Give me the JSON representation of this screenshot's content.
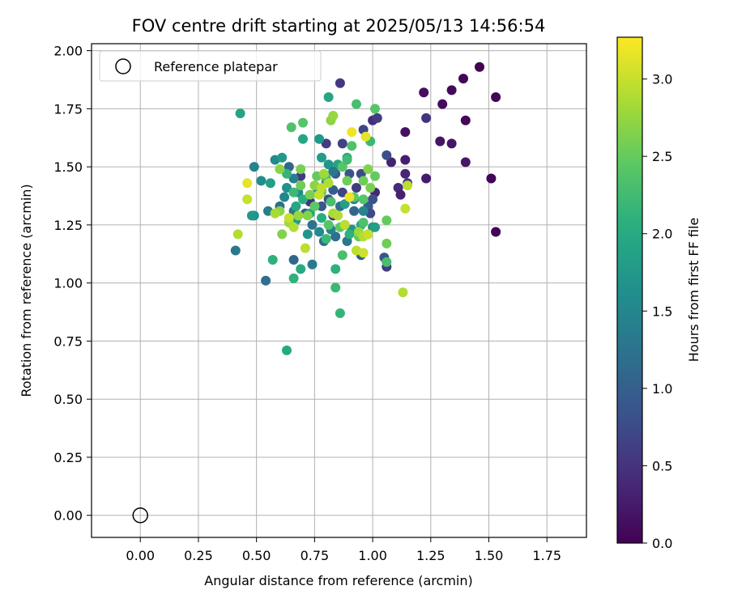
{
  "chart_data": {
    "type": "scatter",
    "title": "FOV centre drift starting at 2025/05/13 14:56:54",
    "xlabel": "Angular distance from reference (arcmin)",
    "ylabel": "Rotation from reference (arcmin)",
    "xlim": [
      -0.21,
      1.92
    ],
    "ylim": [
      -0.095,
      2.03
    ],
    "xticks": [
      "0.00",
      "0.25",
      "0.50",
      "0.75",
      "1.00",
      "1.25",
      "1.50",
      "1.75"
    ],
    "xtick_values": [
      0,
      0.25,
      0.5,
      0.75,
      1.0,
      1.25,
      1.5,
      1.75
    ],
    "yticks": [
      "0.00",
      "0.25",
      "0.50",
      "0.75",
      "1.00",
      "1.25",
      "1.50",
      "1.75",
      "2.00"
    ],
    "ytick_values": [
      0,
      0.25,
      0.5,
      0.75,
      1.0,
      1.25,
      1.5,
      1.75,
      2.0
    ],
    "grid": true,
    "legend": {
      "position": "upper-left",
      "entries": [
        {
          "label": "Reference platepar",
          "marker": "open-circle"
        }
      ]
    },
    "reference_point": {
      "x": 0.0,
      "y": 0.0
    },
    "colorbar": {
      "label": "Hours from first FF file",
      "range": [
        0.0,
        3.27
      ],
      "ticks": [
        "0.0",
        "0.5",
        "1.0",
        "1.5",
        "2.0",
        "2.5",
        "3.0"
      ],
      "tick_values": [
        0,
        0.5,
        1.0,
        1.5,
        2.0,
        2.5,
        3.0
      ],
      "colormap": "viridis"
    },
    "points": [
      [
        1.46,
        1.93,
        0.0
      ],
      [
        1.39,
        1.88,
        0.05
      ],
      [
        1.34,
        1.83,
        0.08
      ],
      [
        1.3,
        1.77,
        0.1
      ],
      [
        1.22,
        1.82,
        0.12
      ],
      [
        1.53,
        1.8,
        0.02
      ],
      [
        1.4,
        1.7,
        0.06
      ],
      [
        1.14,
        1.65,
        0.15
      ],
      [
        1.29,
        1.61,
        0.18
      ],
      [
        1.34,
        1.6,
        0.2
      ],
      [
        1.4,
        1.52,
        0.22
      ],
      [
        1.51,
        1.45,
        0.04
      ],
      [
        1.53,
        1.22,
        0.03
      ],
      [
        1.23,
        1.45,
        0.25
      ],
      [
        1.14,
        1.53,
        0.28
      ],
      [
        1.08,
        1.52,
        0.32
      ],
      [
        1.14,
        1.47,
        0.35
      ],
      [
        1.11,
        1.41,
        0.4
      ],
      [
        1.12,
        1.38,
        0.3
      ],
      [
        1.15,
        1.43,
        0.45
      ],
      [
        1.23,
        1.71,
        0.5
      ],
      [
        1.0,
        1.7,
        0.42
      ],
      [
        1.02,
        1.71,
        0.6
      ],
      [
        0.86,
        1.86,
        0.55
      ],
      [
        0.96,
        1.66,
        0.7
      ],
      [
        1.06,
        1.55,
        0.8
      ],
      [
        1.01,
        1.39,
        0.38
      ],
      [
        1.06,
        1.07,
        0.6
      ],
      [
        1.05,
        1.11,
        0.9
      ],
      [
        0.95,
        1.12,
        1.0
      ],
      [
        0.87,
        1.6,
        0.65
      ],
      [
        0.8,
        1.6,
        0.58
      ],
      [
        0.95,
        1.47,
        0.75
      ],
      [
        0.9,
        1.47,
        0.85
      ],
      [
        0.84,
        1.47,
        0.95
      ],
      [
        0.8,
        1.44,
        1.05
      ],
      [
        0.93,
        1.41,
        0.6
      ],
      [
        0.87,
        1.39,
        0.7
      ],
      [
        0.81,
        1.36,
        0.8
      ],
      [
        0.78,
        1.33,
        0.9
      ],
      [
        0.98,
        1.33,
        1.0
      ],
      [
        0.92,
        1.31,
        1.1
      ],
      [
        0.83,
        1.29,
        0.5
      ],
      [
        0.88,
        1.25,
        0.65
      ],
      [
        0.99,
        1.3,
        0.75
      ],
      [
        1.0,
        1.36,
        0.85
      ],
      [
        0.84,
        1.2,
        1.2
      ],
      [
        0.89,
        1.18,
        1.3
      ],
      [
        0.79,
        1.18,
        1.15
      ],
      [
        0.74,
        1.25,
        1.25
      ],
      [
        0.73,
        1.35,
        0.45
      ],
      [
        0.69,
        1.46,
        0.55
      ],
      [
        0.71,
        1.3,
        0.95
      ],
      [
        0.64,
        1.5,
        1.1
      ],
      [
        0.66,
        1.31,
        1.3
      ],
      [
        0.6,
        1.33,
        1.2
      ],
      [
        0.55,
        1.31,
        1.4
      ],
      [
        0.41,
        1.14,
        1.3
      ],
      [
        0.54,
        1.01,
        1.2
      ],
      [
        0.66,
        1.1,
        1.1
      ],
      [
        0.74,
        1.08,
        1.35
      ],
      [
        0.62,
        1.37,
        1.5
      ],
      [
        0.49,
        1.5,
        1.45
      ],
      [
        0.52,
        1.44,
        1.6
      ],
      [
        0.58,
        1.53,
        1.55
      ],
      [
        0.61,
        1.54,
        1.75
      ],
      [
        0.66,
        1.45,
        1.4
      ],
      [
        0.68,
        1.39,
        1.5
      ],
      [
        0.76,
        1.41,
        1.6
      ],
      [
        0.78,
        1.4,
        1.3
      ],
      [
        0.83,
        1.4,
        1.0
      ],
      [
        0.86,
        1.33,
        1.2
      ],
      [
        0.92,
        1.36,
        1.4
      ],
      [
        0.96,
        1.31,
        1.5
      ],
      [
        1.0,
        1.24,
        1.6
      ],
      [
        0.91,
        1.23,
        1.7
      ],
      [
        0.82,
        1.23,
        1.45
      ],
      [
        0.77,
        1.22,
        1.55
      ],
      [
        0.72,
        1.21,
        1.7
      ],
      [
        0.67,
        1.27,
        1.8
      ],
      [
        0.63,
        1.41,
        1.65
      ],
      [
        0.56,
        1.43,
        1.85
      ],
      [
        0.49,
        1.29,
        1.65
      ],
      [
        0.48,
        1.29,
        1.75
      ],
      [
        0.81,
        1.51,
        1.7
      ],
      [
        0.78,
        1.54,
        1.8
      ],
      [
        0.85,
        1.51,
        1.9
      ],
      [
        0.89,
        1.54,
        2.0
      ],
      [
        0.77,
        1.62,
        1.75
      ],
      [
        0.7,
        1.62,
        1.95
      ],
      [
        0.81,
        1.8,
        1.95
      ],
      [
        0.83,
        1.48,
        1.3
      ],
      [
        0.88,
        1.34,
        1.85
      ],
      [
        0.95,
        1.25,
        1.95
      ],
      [
        0.98,
        1.21,
        2.0
      ],
      [
        1.01,
        1.24,
        1.85
      ],
      [
        0.9,
        1.21,
        2.1
      ],
      [
        0.78,
        1.28,
        2.05
      ],
      [
        0.73,
        1.3,
        1.9
      ],
      [
        0.7,
        1.36,
        2.05
      ],
      [
        0.66,
        1.39,
        2.2
      ],
      [
        0.63,
        1.47,
        2.15
      ],
      [
        0.67,
        1.33,
        1.95
      ],
      [
        0.69,
        1.06,
        2.0
      ],
      [
        0.66,
        1.02,
        2.1
      ],
      [
        0.57,
        1.1,
        2.1
      ],
      [
        0.63,
        0.71,
        2.0
      ],
      [
        0.84,
        1.06,
        2.1
      ],
      [
        0.84,
        0.98,
        2.2
      ],
      [
        0.86,
        0.87,
        2.15
      ],
      [
        0.87,
        1.12,
        2.3
      ],
      [
        0.8,
        1.19,
        2.2
      ],
      [
        0.81,
        1.25,
        2.4
      ],
      [
        0.82,
        1.35,
        2.3
      ],
      [
        0.86,
        1.24,
        2.45
      ],
      [
        0.94,
        1.2,
        2.5
      ],
      [
        0.96,
        1.26,
        2.35
      ],
      [
        0.92,
        1.37,
        2.45
      ],
      [
        0.96,
        1.44,
        2.55
      ],
      [
        1.01,
        1.46,
        2.5
      ],
      [
        0.99,
        1.41,
        2.6
      ],
      [
        0.98,
        1.49,
        2.65
      ],
      [
        0.89,
        1.44,
        2.55
      ],
      [
        0.87,
        1.5,
        2.4
      ],
      [
        0.91,
        1.59,
        2.35
      ],
      [
        0.89,
        1.53,
        2.25
      ],
      [
        0.93,
        1.77,
        2.3
      ],
      [
        1.01,
        1.75,
        2.4
      ],
      [
        0.99,
        1.61,
        2.2
      ],
      [
        1.06,
        1.27,
        2.5
      ],
      [
        1.06,
        1.17,
        2.55
      ],
      [
        1.06,
        1.09,
        2.3
      ],
      [
        0.96,
        1.36,
        2.4
      ],
      [
        0.73,
        1.38,
        2.6
      ],
      [
        0.75,
        1.33,
        2.45
      ],
      [
        0.69,
        1.42,
        2.55
      ],
      [
        0.65,
        1.67,
        2.35
      ],
      [
        0.7,
        1.69,
        2.4
      ],
      [
        0.76,
        1.46,
        2.5
      ],
      [
        0.8,
        1.45,
        2.3
      ],
      [
        0.78,
        1.39,
        2.55
      ],
      [
        0.75,
        1.42,
        2.7
      ],
      [
        0.72,
        1.29,
        2.65
      ],
      [
        0.68,
        1.29,
        2.75
      ],
      [
        0.64,
        1.26,
        2.8
      ],
      [
        0.6,
        1.31,
        2.7
      ],
      [
        0.58,
        1.3,
        2.85
      ],
      [
        0.61,
        1.21,
        2.65
      ],
      [
        0.6,
        1.49,
        2.7
      ],
      [
        0.69,
        1.49,
        2.6
      ],
      [
        0.82,
        1.7,
        2.7
      ],
      [
        0.83,
        1.72,
        2.75
      ],
      [
        0.79,
        1.47,
        2.8
      ],
      [
        0.81,
        1.43,
        2.9
      ],
      [
        0.78,
        1.41,
        2.95
      ],
      [
        0.77,
        1.38,
        3.0
      ],
      [
        0.83,
        1.3,
        2.85
      ],
      [
        0.85,
        1.29,
        2.9
      ],
      [
        0.88,
        1.25,
        2.95
      ],
      [
        0.94,
        1.22,
        2.8
      ],
      [
        0.96,
        1.2,
        2.9
      ],
      [
        0.93,
        1.14,
        2.95
      ],
      [
        0.96,
        1.13,
        3.05
      ],
      [
        0.98,
        1.21,
        3.0
      ],
      [
        0.71,
        1.15,
        2.95
      ],
      [
        0.66,
        1.24,
        2.9
      ],
      [
        0.64,
        1.28,
        3.0
      ],
      [
        0.46,
        1.36,
        3.0
      ],
      [
        0.42,
        1.21,
        2.9
      ],
      [
        0.46,
        1.43,
        3.15
      ],
      [
        0.91,
        1.65,
        3.2
      ],
      [
        0.97,
        1.63,
        3.15
      ],
      [
        0.9,
        1.37,
        3.2
      ],
      [
        1.13,
        0.96,
        2.9
      ],
      [
        1.14,
        1.32,
        3.0
      ],
      [
        1.15,
        1.42,
        2.95
      ],
      [
        0.43,
        1.73,
        1.9
      ]
    ]
  }
}
